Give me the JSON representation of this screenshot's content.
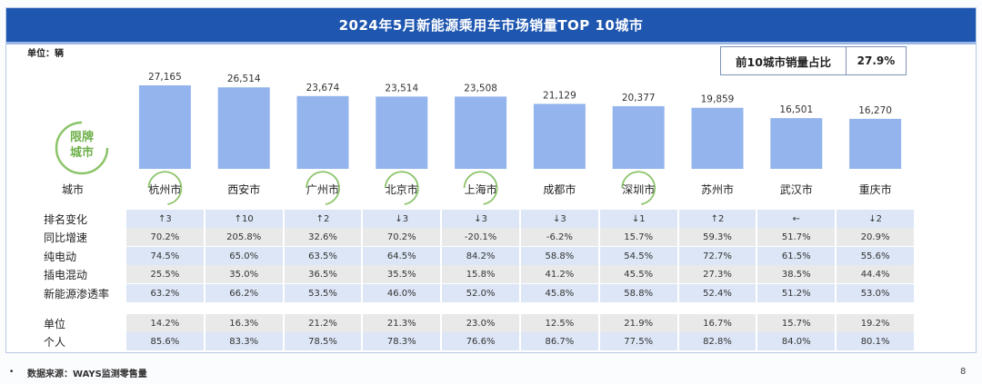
{
  "title": "2024年5月新能源乘用车市场销量TOP  10城市",
  "unit_label": "单位：辆",
  "share": {
    "label": "前10城市销量占比",
    "value": "27.9%"
  },
  "badge": {
    "line1": "限牌",
    "line2": "城市"
  },
  "colors": {
    "bar": "#93b4ec",
    "header": "#1f57b0",
    "row_light": "#dce6f6",
    "row_gray": "#e9e9ea",
    "badge": "#8cc46a"
  },
  "chart_data": {
    "type": "bar",
    "title": "2024年5月新能源乘用车市场销量TOP  10城市",
    "categories": [
      "杭州市",
      "西安市",
      "广州市",
      "北京市",
      "上海市",
      "成都市",
      "深圳市",
      "苏州市",
      "武汉市",
      "重庆市"
    ],
    "values": [
      27165,
      26514,
      23674,
      23514,
      23508,
      21129,
      20377,
      19859,
      16501,
      16270
    ],
    "value_labels": [
      "27,165",
      "26,514",
      "23,674",
      "23,514",
      "23,508",
      "21,129",
      "20,377",
      "19,859",
      "16,501",
      "16,270"
    ],
    "ylabel": "单位：辆",
    "xlabel": "城市",
    "ylim": [
      0,
      27165
    ],
    "limited_plate_cities": [
      "杭州市",
      "广州市",
      "北京市",
      "上海市",
      "深圳市"
    ]
  },
  "table": {
    "header_label": "城市",
    "rows": [
      {
        "label": "排名变化",
        "values": [
          "↑3",
          "↑10",
          "↑2",
          "↓3",
          "↓3",
          "↓3",
          "↓1",
          "↑2",
          "←",
          "↓2"
        ]
      },
      {
        "label": "同比增速",
        "values": [
          "70.2%",
          "205.8%",
          "32.6%",
          "70.2%",
          "-20.1%",
          "-6.2%",
          "15.7%",
          "59.3%",
          "51.7%",
          "20.9%"
        ]
      },
      {
        "label": "纯电动",
        "values": [
          "74.5%",
          "65.0%",
          "63.5%",
          "64.5%",
          "84.2%",
          "58.8%",
          "54.5%",
          "72.7%",
          "61.5%",
          "55.6%"
        ]
      },
      {
        "label": "插电混动",
        "values": [
          "25.5%",
          "35.0%",
          "36.5%",
          "35.5%",
          "15.8%",
          "41.2%",
          "45.5%",
          "27.3%",
          "38.5%",
          "44.4%"
        ]
      },
      {
        "label": "新能源渗透率",
        "values": [
          "63.2%",
          "66.2%",
          "53.5%",
          "46.0%",
          "52.0%",
          "45.8%",
          "58.8%",
          "52.4%",
          "51.2%",
          "53.0%"
        ]
      },
      {
        "label": "单位",
        "values": [
          "14.2%",
          "16.3%",
          "21.2%",
          "21.3%",
          "23.0%",
          "12.5%",
          "21.9%",
          "16.7%",
          "15.7%",
          "19.2%"
        ]
      },
      {
        "label": "个人",
        "values": [
          "85.6%",
          "83.3%",
          "78.5%",
          "78.3%",
          "76.6%",
          "86.7%",
          "77.5%",
          "82.8%",
          "84.0%",
          "80.1%"
        ]
      }
    ]
  },
  "footer": {
    "bullet": "•",
    "source": "数据来源：WAYS监测零售量",
    "page": "8"
  }
}
